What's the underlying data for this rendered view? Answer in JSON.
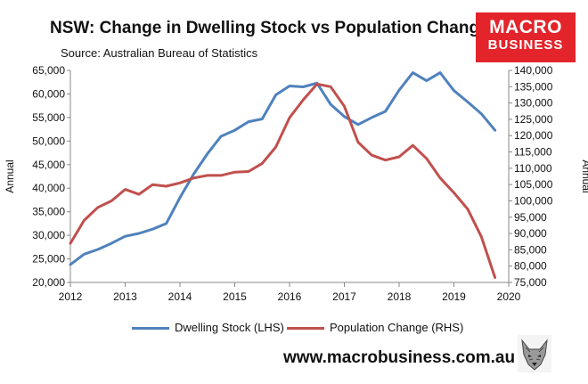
{
  "header": {
    "title": "NSW: Change in Dwelling Stock vs Population Change",
    "source": "Source: Australian Bureau of Statistics"
  },
  "logo": {
    "line1": "MACRO",
    "line2": "BUSINESS"
  },
  "footer": {
    "website": "www.macrobusiness.com.au"
  },
  "colors": {
    "dwelling": "#4f81bd",
    "population": "#c0504d",
    "logo_bg": "#e3242b"
  },
  "chart_data": {
    "type": "line",
    "title": "NSW: Change in Dwelling Stock vs Population Change",
    "subtitle": "Source: Australian Bureau of Statistics",
    "xlabel": "",
    "ylabel_left": "Annual",
    "ylabel_right": "Annual",
    "xlim": [
      2012,
      2020
    ],
    "x_ticks": [
      "2012",
      "2013",
      "2014",
      "2015",
      "2016",
      "2017",
      "2018",
      "2019",
      "2020"
    ],
    "y_left": {
      "range": [
        20000,
        65000
      ],
      "ticks": [
        "20,000",
        "25,000",
        "30,000",
        "35,000",
        "40,000",
        "45,000",
        "50,000",
        "55,000",
        "60,000",
        "65,000"
      ]
    },
    "y_right": {
      "range": [
        75000,
        140000
      ],
      "ticks": [
        "75,000",
        "80,000",
        "85,000",
        "90,000",
        "95,000",
        "100,000",
        "105,000",
        "110,000",
        "115,000",
        "120,000",
        "125,000",
        "130,000",
        "135,000",
        "140,000"
      ]
    },
    "legend": "bottom",
    "grid": false,
    "series": [
      {
        "name": "Dwelling Stock (LHS)",
        "axis": "left",
        "color": "#4f81bd",
        "x": [
          2012.0,
          2012.25,
          2012.5,
          2012.75,
          2013.0,
          2013.25,
          2013.5,
          2013.75,
          2014.0,
          2014.25,
          2014.5,
          2014.75,
          2015.0,
          2015.25,
          2015.5,
          2015.75,
          2016.0,
          2016.25,
          2016.5,
          2016.75,
          2017.0,
          2017.25,
          2017.5,
          2017.75,
          2018.0,
          2018.25,
          2018.5,
          2018.75,
          2019.0,
          2019.25,
          2019.5,
          2019.75
        ],
        "values": [
          23800,
          26000,
          27000,
          28300,
          29800,
          30400,
          31300,
          32500,
          38000,
          43000,
          47300,
          51000,
          52300,
          54100,
          54700,
          59800,
          61700,
          61500,
          62300,
          57800,
          55200,
          53500,
          55000,
          56300,
          60800,
          64500,
          62800,
          64500,
          60700,
          58300,
          55800,
          52300
        ]
      },
      {
        "name": "Population Change (RHS)",
        "axis": "right",
        "color": "#c0504d",
        "x": [
          2012.0,
          2012.25,
          2012.5,
          2012.75,
          2013.0,
          2013.25,
          2013.5,
          2013.75,
          2014.0,
          2014.25,
          2014.5,
          2014.75,
          2015.0,
          2015.25,
          2015.5,
          2015.75,
          2016.0,
          2016.25,
          2016.5,
          2016.75,
          2017.0,
          2017.25,
          2017.5,
          2017.75,
          2018.0,
          2018.25,
          2018.5,
          2018.75,
          2019.0,
          2019.25,
          2019.5,
          2019.75
        ],
        "values": [
          87000,
          94000,
          98000,
          100000,
          103500,
          102000,
          105000,
          104500,
          105500,
          107000,
          107800,
          107800,
          108800,
          109000,
          111500,
          116500,
          125500,
          131000,
          135800,
          135000,
          129000,
          118000,
          114000,
          112500,
          113500,
          117000,
          113000,
          107000,
          102500,
          97500,
          89000,
          76500
        ]
      }
    ]
  }
}
